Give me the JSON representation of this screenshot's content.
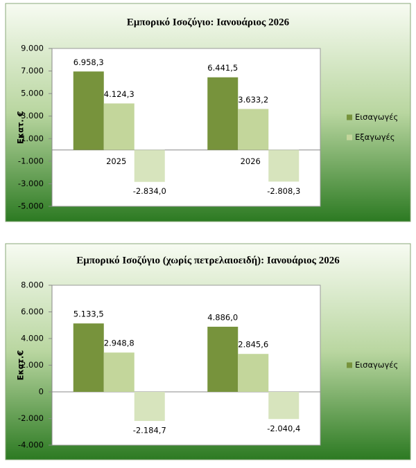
{
  "chart_data": [
    {
      "type": "bar",
      "title": "Εμπορικό Ισοζύγιο: Ιανουάριος 2026",
      "y_label": "Εκατ. €",
      "categories": [
        "2025",
        "2026"
      ],
      "series": [
        {
          "name": "Εισαγωγές",
          "color": "#77933c",
          "values": [
            6958.3,
            6441.5
          ],
          "value_labels": [
            "6.958,3",
            "6.441,5"
          ]
        },
        {
          "name": "Εξαγωγές",
          "color": "#c3d69b",
          "values": [
            4124.3,
            3633.2
          ],
          "value_labels": [
            "4.124,3",
            "3.633,2"
          ]
        },
        {
          "color": "#d7e4bd",
          "values": [
            -2834.0,
            -2808.3
          ],
          "value_labels": [
            "-2.834,0",
            "-2.808,3"
          ]
        }
      ],
      "ylim": [
        -5000,
        9000
      ],
      "yticks": [
        {
          "value": -5000,
          "label": "-5.000"
        },
        {
          "value": -3000,
          "label": "-3.000"
        },
        {
          "value": -1000,
          "label": "-1.000"
        },
        {
          "value": 1000,
          "label": "1.000"
        },
        {
          "value": 3000,
          "label": "3.000"
        },
        {
          "value": 5000,
          "label": "5.000"
        },
        {
          "value": 7000,
          "label": "7.000"
        },
        {
          "value": 9000,
          "label": "9.000"
        }
      ],
      "grid": false,
      "legend": "right"
    },
    {
      "type": "bar",
      "title": "Εμπορικό Ισοζύγιο (χωρίς πετρελαιοειδή): Ιανουάριος 2026",
      "y_label": "Εκατ.€",
      "categories": [
        null,
        null
      ],
      "series": [
        {
          "name": "Εισαγωγές",
          "color": "#77933c",
          "values": [
            5133.5,
            4886.0
          ],
          "value_labels": [
            "5.133,5",
            "4.886,0"
          ]
        },
        {
          "color": "#c3d69b",
          "values": [
            2948.8,
            2845.6
          ],
          "value_labels": [
            "2.948,8",
            "2.845,6"
          ]
        },
        {
          "color": "#d7e4bd",
          "values": [
            -2184.7,
            -2040.4
          ],
          "value_labels": [
            "-2.184,7",
            "-2.040,4"
          ]
        }
      ],
      "ylim": [
        -4000,
        8000
      ],
      "yticks": [
        {
          "value": -4000,
          "label": "-4.000"
        },
        {
          "value": -2000,
          "label": "-2.000"
        },
        0,
        {
          "value": 2000,
          "label": "2.000"
        },
        {
          "value": 4000,
          "label": "4.000"
        },
        {
          "value": 6000,
          "label": "6.000"
        },
        {
          "value": 8000,
          "label": "8.000"
        }
      ],
      "grid": false,
      "legend": "right"
    }
  ]
}
